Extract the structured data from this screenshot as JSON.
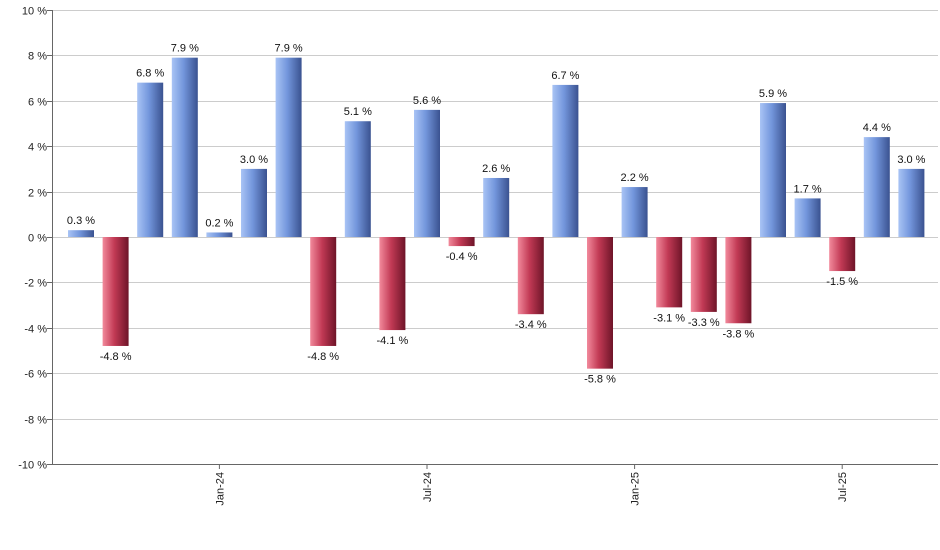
{
  "chart_data": {
    "type": "bar",
    "title": "",
    "xlabel": "",
    "ylabel": "",
    "ylim": [
      -10,
      10
    ],
    "y_ticks": [
      10,
      8,
      6,
      4,
      2,
      0,
      -2,
      -4,
      -6,
      -8,
      -10
    ],
    "y_tick_labels": [
      "10 %",
      "8 %",
      "6 %",
      "4 %",
      "2 %",
      "0 %",
      "-2 %",
      "-4 %",
      "-6 %",
      "-8 %",
      "-10 %"
    ],
    "x_tick_labels": [
      {
        "label": "Jan-24",
        "bar_index": 4
      },
      {
        "label": "Jul-24",
        "bar_index": 10
      },
      {
        "label": "Jan-25",
        "bar_index": 16
      },
      {
        "label": "Jul-25",
        "bar_index": 22
      }
    ],
    "values": [
      0.3,
      -4.8,
      6.8,
      7.9,
      0.2,
      3.0,
      7.9,
      -4.8,
      5.1,
      -4.1,
      5.6,
      -0.4,
      2.6,
      -3.4,
      6.7,
      -5.8,
      2.2,
      -3.1,
      -3.3,
      -3.8,
      5.9,
      1.7,
      -1.5,
      4.4,
      3.0
    ],
    "labels": [
      "0.3 %",
      "-4.8 %",
      "6.8 %",
      "7.9 %",
      "0.2 %",
      "3.0 %",
      "7.9 %",
      "-4.8 %",
      "5.1 %",
      "-4.1 %",
      "5.6 %",
      "-0.4 %",
      "2.6 %",
      "-3.4 %",
      "6.7 %",
      "-5.8 %",
      "2.2 %",
      "-3.1 %",
      "-3.3 %",
      "-3.8 %",
      "5.9 %",
      "1.7 %",
      "-1.5 %",
      "4.4 %",
      "3.0 %"
    ],
    "grid": true,
    "colors": {
      "positive_light": "#a9c4f5",
      "positive_mid": "#7396dc",
      "positive_dark": "#3a5290",
      "negative_light": "#f28a9c",
      "negative_mid": "#c23a55",
      "negative_dark": "#6e1428",
      "grid": "#cccccc",
      "axis": "#666666"
    }
  }
}
